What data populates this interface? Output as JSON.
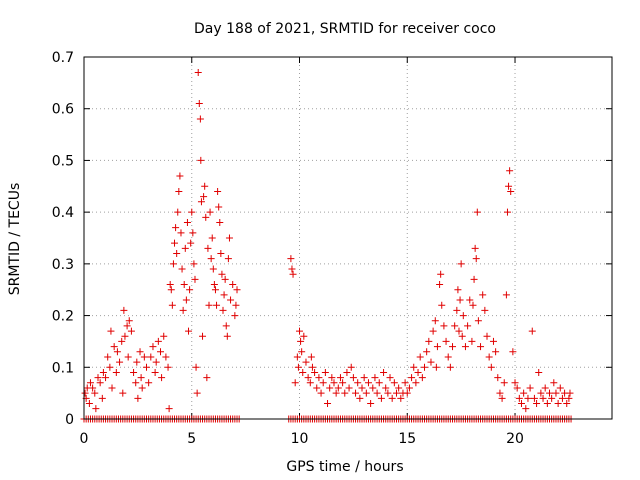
{
  "chart_data": {
    "type": "scatter",
    "title": "Day 188 of 2021, SRMTID for receiver coco",
    "xlabel": "GPS time / hours",
    "ylabel": "SRMTID / TECUs",
    "xlim": [
      0,
      24.5
    ],
    "ylim": [
      0,
      0.7
    ],
    "x_ticks": [
      0,
      5,
      10,
      15,
      20
    ],
    "x_tick_labels": [
      "0",
      "5",
      "10",
      "15",
      "20"
    ],
    "y_ticks": [
      0,
      0.1,
      0.2,
      0.3,
      0.4,
      0.5,
      0.6,
      0.7
    ],
    "y_tick_labels": [
      "0",
      "0.1",
      "0.2",
      "0.3",
      "0.4",
      "0.5",
      "0.6",
      "0.7"
    ],
    "grid": true,
    "marker": "plus",
    "series": [
      {
        "name": "SRMTID",
        "color": "#e00000",
        "points": [
          [
            0.05,
            0.05
          ],
          [
            0.1,
            0.04
          ],
          [
            0.15,
            0.06
          ],
          [
            0.25,
            0.03
          ],
          [
            0.3,
            0.07
          ],
          [
            0.4,
            0.06
          ],
          [
            0.5,
            0.05
          ],
          [
            0.55,
            0.02
          ],
          [
            0.65,
            0.08
          ],
          [
            0.75,
            0.07
          ],
          [
            0.85,
            0.04
          ],
          [
            0.9,
            0.09
          ],
          [
            1.0,
            0.08
          ],
          [
            1.1,
            0.12
          ],
          [
            1.2,
            0.1
          ],
          [
            1.25,
            0.17
          ],
          [
            1.3,
            0.06
          ],
          [
            1.4,
            0.14
          ],
          [
            1.5,
            0.09
          ],
          [
            1.55,
            0.13
          ],
          [
            1.65,
            0.11
          ],
          [
            1.75,
            0.15
          ],
          [
            1.8,
            0.05
          ],
          [
            1.85,
            0.21
          ],
          [
            1.9,
            0.16
          ],
          [
            2.0,
            0.18
          ],
          [
            2.05,
            0.12
          ],
          [
            2.1,
            0.19
          ],
          [
            2.2,
            0.17
          ],
          [
            2.3,
            0.09
          ],
          [
            2.4,
            0.07
          ],
          [
            2.45,
            0.11
          ],
          [
            2.5,
            0.04
          ],
          [
            2.6,
            0.13
          ],
          [
            2.65,
            0.08
          ],
          [
            2.7,
            0.06
          ],
          [
            2.8,
            0.12
          ],
          [
            2.9,
            0.1
          ],
          [
            3.0,
            0.07
          ],
          [
            3.1,
            0.12
          ],
          [
            3.2,
            0.14
          ],
          [
            3.3,
            0.09
          ],
          [
            3.35,
            0.11
          ],
          [
            3.45,
            0.15
          ],
          [
            3.55,
            0.13
          ],
          [
            3.6,
            0.08
          ],
          [
            3.7,
            0.16
          ],
          [
            3.8,
            0.12
          ],
          [
            3.9,
            0.1
          ],
          [
            3.95,
            0.02
          ],
          [
            4.0,
            0.26
          ],
          [
            4.05,
            0.25
          ],
          [
            4.1,
            0.22
          ],
          [
            4.15,
            0.3
          ],
          [
            4.2,
            0.34
          ],
          [
            4.25,
            0.37
          ],
          [
            4.3,
            0.32
          ],
          [
            4.35,
            0.4
          ],
          [
            4.4,
            0.44
          ],
          [
            4.45,
            0.47
          ],
          [
            4.5,
            0.36
          ],
          [
            4.55,
            0.29
          ],
          [
            4.6,
            0.21
          ],
          [
            4.65,
            0.26
          ],
          [
            4.7,
            0.33
          ],
          [
            4.75,
            0.23
          ],
          [
            4.8,
            0.38
          ],
          [
            4.85,
            0.17
          ],
          [
            4.9,
            0.25
          ],
          [
            4.95,
            0.34
          ],
          [
            5.0,
            0.4
          ],
          [
            5.05,
            0.36
          ],
          [
            5.1,
            0.3
          ],
          [
            5.15,
            0.27
          ],
          [
            5.2,
            0.1
          ],
          [
            5.25,
            0.05
          ],
          [
            5.3,
            0.67
          ],
          [
            5.35,
            0.61
          ],
          [
            5.4,
            0.58
          ],
          [
            5.42,
            0.5
          ],
          [
            5.45,
            0.42
          ],
          [
            5.5,
            0.16
          ],
          [
            5.55,
            0.43
          ],
          [
            5.6,
            0.45
          ],
          [
            5.65,
            0.39
          ],
          [
            5.7,
            0.08
          ],
          [
            5.75,
            0.33
          ],
          [
            5.8,
            0.22
          ],
          [
            5.85,
            0.4
          ],
          [
            5.9,
            0.31
          ],
          [
            5.95,
            0.35
          ],
          [
            6.0,
            0.29
          ],
          [
            6.05,
            0.26
          ],
          [
            6.1,
            0.25
          ],
          [
            6.15,
            0.22
          ],
          [
            6.2,
            0.44
          ],
          [
            6.25,
            0.41
          ],
          [
            6.3,
            0.38
          ],
          [
            6.35,
            0.32
          ],
          [
            6.4,
            0.28
          ],
          [
            6.45,
            0.21
          ],
          [
            6.5,
            0.24
          ],
          [
            6.55,
            0.27
          ],
          [
            6.6,
            0.18
          ],
          [
            6.65,
            0.16
          ],
          [
            6.7,
            0.31
          ],
          [
            6.75,
            0.35
          ],
          [
            6.8,
            0.23
          ],
          [
            6.9,
            0.26
          ],
          [
            7.0,
            0.2
          ],
          [
            7.05,
            0.22
          ],
          [
            7.1,
            0.25
          ],
          [
            9.6,
            0.31
          ],
          [
            9.65,
            0.29
          ],
          [
            9.7,
            0.28
          ],
          [
            9.8,
            0.07
          ],
          [
            9.9,
            0.12
          ],
          [
            9.95,
            0.1
          ],
          [
            10.0,
            0.17
          ],
          [
            10.05,
            0.15
          ],
          [
            10.1,
            0.13
          ],
          [
            10.15,
            0.09
          ],
          [
            10.2,
            0.16
          ],
          [
            10.3,
            0.11
          ],
          [
            10.4,
            0.08
          ],
          [
            10.5,
            0.07
          ],
          [
            10.55,
            0.12
          ],
          [
            10.6,
            0.1
          ],
          [
            10.7,
            0.09
          ],
          [
            10.8,
            0.06
          ],
          [
            10.9,
            0.08
          ],
          [
            11.0,
            0.05
          ],
          [
            11.1,
            0.07
          ],
          [
            11.2,
            0.09
          ],
          [
            11.3,
            0.03
          ],
          [
            11.4,
            0.06
          ],
          [
            11.5,
            0.08
          ],
          [
            11.6,
            0.07
          ],
          [
            11.7,
            0.05
          ],
          [
            11.8,
            0.06
          ],
          [
            11.9,
            0.08
          ],
          [
            12.0,
            0.07
          ],
          [
            12.1,
            0.05
          ],
          [
            12.2,
            0.09
          ],
          [
            12.3,
            0.06
          ],
          [
            12.4,
            0.1
          ],
          [
            12.5,
            0.08
          ],
          [
            12.6,
            0.05
          ],
          [
            12.7,
            0.07
          ],
          [
            12.8,
            0.04
          ],
          [
            12.9,
            0.06
          ],
          [
            13.0,
            0.08
          ],
          [
            13.1,
            0.05
          ],
          [
            13.2,
            0.07
          ],
          [
            13.3,
            0.03
          ],
          [
            13.4,
            0.06
          ],
          [
            13.5,
            0.08
          ],
          [
            13.6,
            0.05
          ],
          [
            13.7,
            0.07
          ],
          [
            13.8,
            0.04
          ],
          [
            13.9,
            0.09
          ],
          [
            14.0,
            0.06
          ],
          [
            14.1,
            0.05
          ],
          [
            14.2,
            0.08
          ],
          [
            14.3,
            0.04
          ],
          [
            14.4,
            0.07
          ],
          [
            14.5,
            0.05
          ],
          [
            14.6,
            0.06
          ],
          [
            14.7,
            0.04
          ],
          [
            14.8,
            0.05
          ],
          [
            14.9,
            0.07
          ],
          [
            15.0,
            0.05
          ],
          [
            15.1,
            0.06
          ],
          [
            15.2,
            0.08
          ],
          [
            15.3,
            0.1
          ],
          [
            15.4,
            0.07
          ],
          [
            15.5,
            0.09
          ],
          [
            15.6,
            0.12
          ],
          [
            15.7,
            0.08
          ],
          [
            15.8,
            0.1
          ],
          [
            15.9,
            0.13
          ],
          [
            16.0,
            0.15
          ],
          [
            16.1,
            0.11
          ],
          [
            16.2,
            0.17
          ],
          [
            16.3,
            0.19
          ],
          [
            16.35,
            0.1
          ],
          [
            16.4,
            0.14
          ],
          [
            16.5,
            0.26
          ],
          [
            16.55,
            0.28
          ],
          [
            16.6,
            0.22
          ],
          [
            16.7,
            0.18
          ],
          [
            16.8,
            0.15
          ],
          [
            16.9,
            0.12
          ],
          [
            17.0,
            0.1
          ],
          [
            17.1,
            0.14
          ],
          [
            17.2,
            0.18
          ],
          [
            17.3,
            0.21
          ],
          [
            17.35,
            0.25
          ],
          [
            17.4,
            0.17
          ],
          [
            17.45,
            0.23
          ],
          [
            17.5,
            0.3
          ],
          [
            17.55,
            0.16
          ],
          [
            17.6,
            0.2
          ],
          [
            17.7,
            0.14
          ],
          [
            17.8,
            0.18
          ],
          [
            17.9,
            0.23
          ],
          [
            18.0,
            0.15
          ],
          [
            18.05,
            0.22
          ],
          [
            18.1,
            0.27
          ],
          [
            18.15,
            0.33
          ],
          [
            18.2,
            0.31
          ],
          [
            18.25,
            0.4
          ],
          [
            18.3,
            0.19
          ],
          [
            18.4,
            0.14
          ],
          [
            18.5,
            0.24
          ],
          [
            18.6,
            0.21
          ],
          [
            18.7,
            0.16
          ],
          [
            18.8,
            0.12
          ],
          [
            18.9,
            0.1
          ],
          [
            19.0,
            0.15
          ],
          [
            19.1,
            0.13
          ],
          [
            19.2,
            0.08
          ],
          [
            19.3,
            0.05
          ],
          [
            19.4,
            0.04
          ],
          [
            19.5,
            0.07
          ],
          [
            19.6,
            0.24
          ],
          [
            19.65,
            0.4
          ],
          [
            19.7,
            0.45
          ],
          [
            19.75,
            0.48
          ],
          [
            19.8,
            0.44
          ],
          [
            19.9,
            0.13
          ],
          [
            20.0,
            0.07
          ],
          [
            20.1,
            0.06
          ],
          [
            20.2,
            0.04
          ],
          [
            20.3,
            0.03
          ],
          [
            20.4,
            0.05
          ],
          [
            20.5,
            0.02
          ],
          [
            20.6,
            0.04
          ],
          [
            20.7,
            0.06
          ],
          [
            20.8,
            0.17
          ],
          [
            20.9,
            0.04
          ],
          [
            21.0,
            0.03
          ],
          [
            21.1,
            0.09
          ],
          [
            21.2,
            0.05
          ],
          [
            21.3,
            0.04
          ],
          [
            21.4,
            0.06
          ],
          [
            21.5,
            0.03
          ],
          [
            21.6,
            0.05
          ],
          [
            21.7,
            0.04
          ],
          [
            21.8,
            0.07
          ],
          [
            21.9,
            0.05
          ],
          [
            22.0,
            0.03
          ],
          [
            22.1,
            0.06
          ],
          [
            22.2,
            0.04
          ],
          [
            22.3,
            0.05
          ],
          [
            22.4,
            0.03
          ],
          [
            22.5,
            0.04
          ],
          [
            22.55,
            0.05
          ]
        ],
        "zero_segments": [
          [
            0.0,
            7.2
          ],
          [
            9.5,
            22.6
          ]
        ]
      }
    ]
  }
}
